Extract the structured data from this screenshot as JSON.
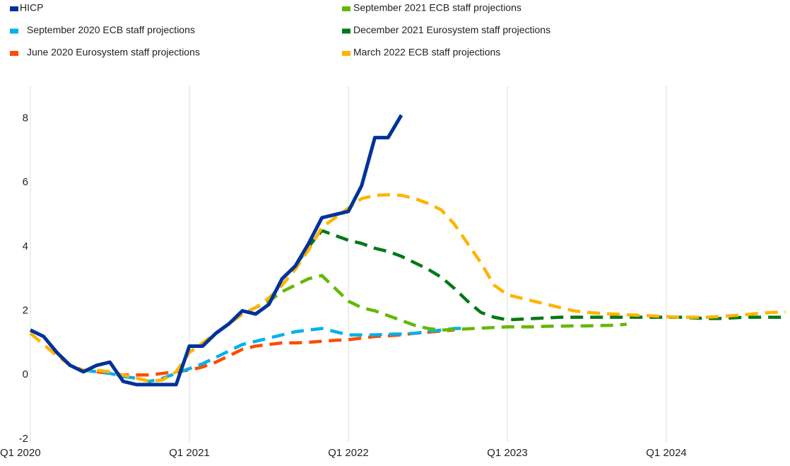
{
  "chart_data": {
    "type": "line",
    "categories": [
      "Q1 2020",
      null,
      null,
      null,
      null,
      null,
      null,
      null,
      null,
      null,
      null,
      null,
      "Q1 2021",
      null,
      null,
      null,
      null,
      null,
      null,
      null,
      null,
      null,
      null,
      null,
      "Q1 2022",
      null,
      null,
      null,
      null,
      null,
      null,
      null,
      null,
      null,
      null,
      null,
      "Q1 2023",
      null,
      null,
      null,
      null,
      null,
      null,
      null,
      null,
      null,
      null,
      null,
      "Q1 2024",
      null,
      null,
      null,
      null,
      null,
      null,
      null,
      null,
      null
    ],
    "ylim": [
      -2,
      9
    ],
    "yticks": [
      -2,
      0,
      2,
      4,
      6,
      8
    ],
    "grid": "vertical",
    "series": [
      {
        "name": "HICP",
        "color": "#003299",
        "style": "solid",
        "values": [
          1.4,
          1.2,
          0.7,
          0.3,
          0.1,
          0.3,
          0.4,
          -0.2,
          -0.3,
          -0.3,
          -0.3,
          -0.3,
          0.9,
          0.9,
          1.3,
          1.6,
          2.0,
          1.9,
          2.2,
          3.0,
          3.4,
          4.1,
          4.9,
          5.0,
          5.1,
          5.9,
          7.4,
          7.4,
          8.1,
          null,
          null,
          null,
          null,
          null,
          null,
          null,
          null,
          null,
          null,
          null,
          null,
          null,
          null,
          null,
          null,
          null,
          null,
          null,
          null,
          null,
          null,
          null,
          null,
          null,
          null,
          null,
          null,
          null
        ]
      },
      {
        "name": "September 2020 ECB staff projections",
        "color": "#00b1ea",
        "style": "dashed",
        "values": [
          null,
          null,
          null,
          null,
          0.15,
          0.1,
          0.05,
          -0.05,
          -0.1,
          -0.2,
          -0.1,
          0.05,
          0.2,
          0.35,
          0.55,
          0.75,
          0.95,
          1.05,
          1.15,
          1.25,
          1.35,
          1.4,
          1.45,
          1.35,
          1.25,
          1.25,
          1.25,
          1.27,
          1.28,
          1.3,
          1.35,
          1.4,
          1.45,
          1.45,
          null,
          null,
          null,
          null,
          null,
          null,
          null,
          null,
          null,
          null,
          null,
          null,
          null,
          null,
          null,
          null,
          null,
          null,
          null,
          null,
          null,
          null,
          null,
          null
        ]
      },
      {
        "name": "June 2020 Eurosystem staff projections",
        "color": "#ff4b00",
        "style": "dashed",
        "values": [
          null,
          null,
          null,
          null,
          null,
          0.1,
          0.05,
          0.0,
          0.0,
          0.0,
          0.05,
          0.1,
          0.15,
          0.25,
          0.4,
          0.6,
          0.8,
          0.9,
          0.95,
          1.0,
          1.0,
          1.02,
          1.05,
          1.08,
          1.1,
          1.15,
          1.2,
          1.22,
          1.25,
          1.3,
          1.33,
          1.37,
          1.4,
          null,
          null,
          null,
          null,
          null,
          null,
          null,
          null,
          null,
          null,
          null,
          null,
          null,
          null,
          null,
          null,
          null,
          null,
          null,
          null,
          null,
          null,
          null,
          null,
          null
        ]
      },
      {
        "name": "September 2021 ECB staff projections",
        "color": "#65b800",
        "style": "dashed",
        "values": [
          null,
          null,
          null,
          null,
          null,
          null,
          null,
          null,
          null,
          null,
          null,
          null,
          null,
          null,
          1.3,
          1.6,
          1.9,
          2.1,
          2.3,
          2.6,
          2.8,
          3.0,
          3.1,
          2.7,
          2.3,
          2.1,
          2.0,
          1.85,
          1.7,
          1.55,
          1.45,
          1.4,
          1.42,
          1.44,
          1.46,
          1.48,
          1.5,
          1.5,
          1.5,
          1.52,
          1.52,
          1.53,
          1.53,
          1.54,
          1.55,
          1.58,
          null,
          null,
          null,
          null,
          null,
          null,
          null,
          null,
          null,
          null,
          null,
          null
        ]
      },
      {
        "name": "December 2021 Eurosystem staff projections",
        "color": "#007816",
        "style": "dashed",
        "values": [
          null,
          null,
          null,
          null,
          null,
          null,
          null,
          null,
          null,
          null,
          null,
          null,
          null,
          null,
          null,
          null,
          null,
          null,
          null,
          null,
          3.4,
          4.0,
          4.5,
          4.35,
          4.2,
          4.1,
          3.95,
          3.85,
          3.7,
          3.5,
          3.3,
          3.05,
          2.7,
          2.3,
          1.95,
          1.8,
          1.72,
          1.74,
          1.76,
          1.78,
          1.8,
          1.8,
          1.8,
          1.8,
          1.8,
          1.8,
          1.8,
          1.8,
          1.8,
          1.8,
          1.78,
          1.76,
          1.76,
          1.78,
          1.8,
          1.8,
          1.8,
          1.8
        ]
      },
      {
        "name": "March 2022 ECB staff projections",
        "color": "#ffb400",
        "style": "dashed",
        "values": [
          1.3,
          0.95,
          0.6,
          0.3,
          0.15,
          0.15,
          0.1,
          0.0,
          -0.1,
          -0.2,
          -0.15,
          0.1,
          0.7,
          1.0,
          1.3,
          1.6,
          1.9,
          2.1,
          2.4,
          2.8,
          3.3,
          3.9,
          4.6,
          4.9,
          5.2,
          5.5,
          5.6,
          5.62,
          5.6,
          5.5,
          5.35,
          5.15,
          4.7,
          4.1,
          3.5,
          2.8,
          2.5,
          2.4,
          2.3,
          2.2,
          2.1,
          2.0,
          1.95,
          1.92,
          1.9,
          1.88,
          1.86,
          1.84,
          1.82,
          1.8,
          1.8,
          1.8,
          1.82,
          1.85,
          1.88,
          1.92,
          1.95,
          1.97
        ]
      }
    ]
  }
}
